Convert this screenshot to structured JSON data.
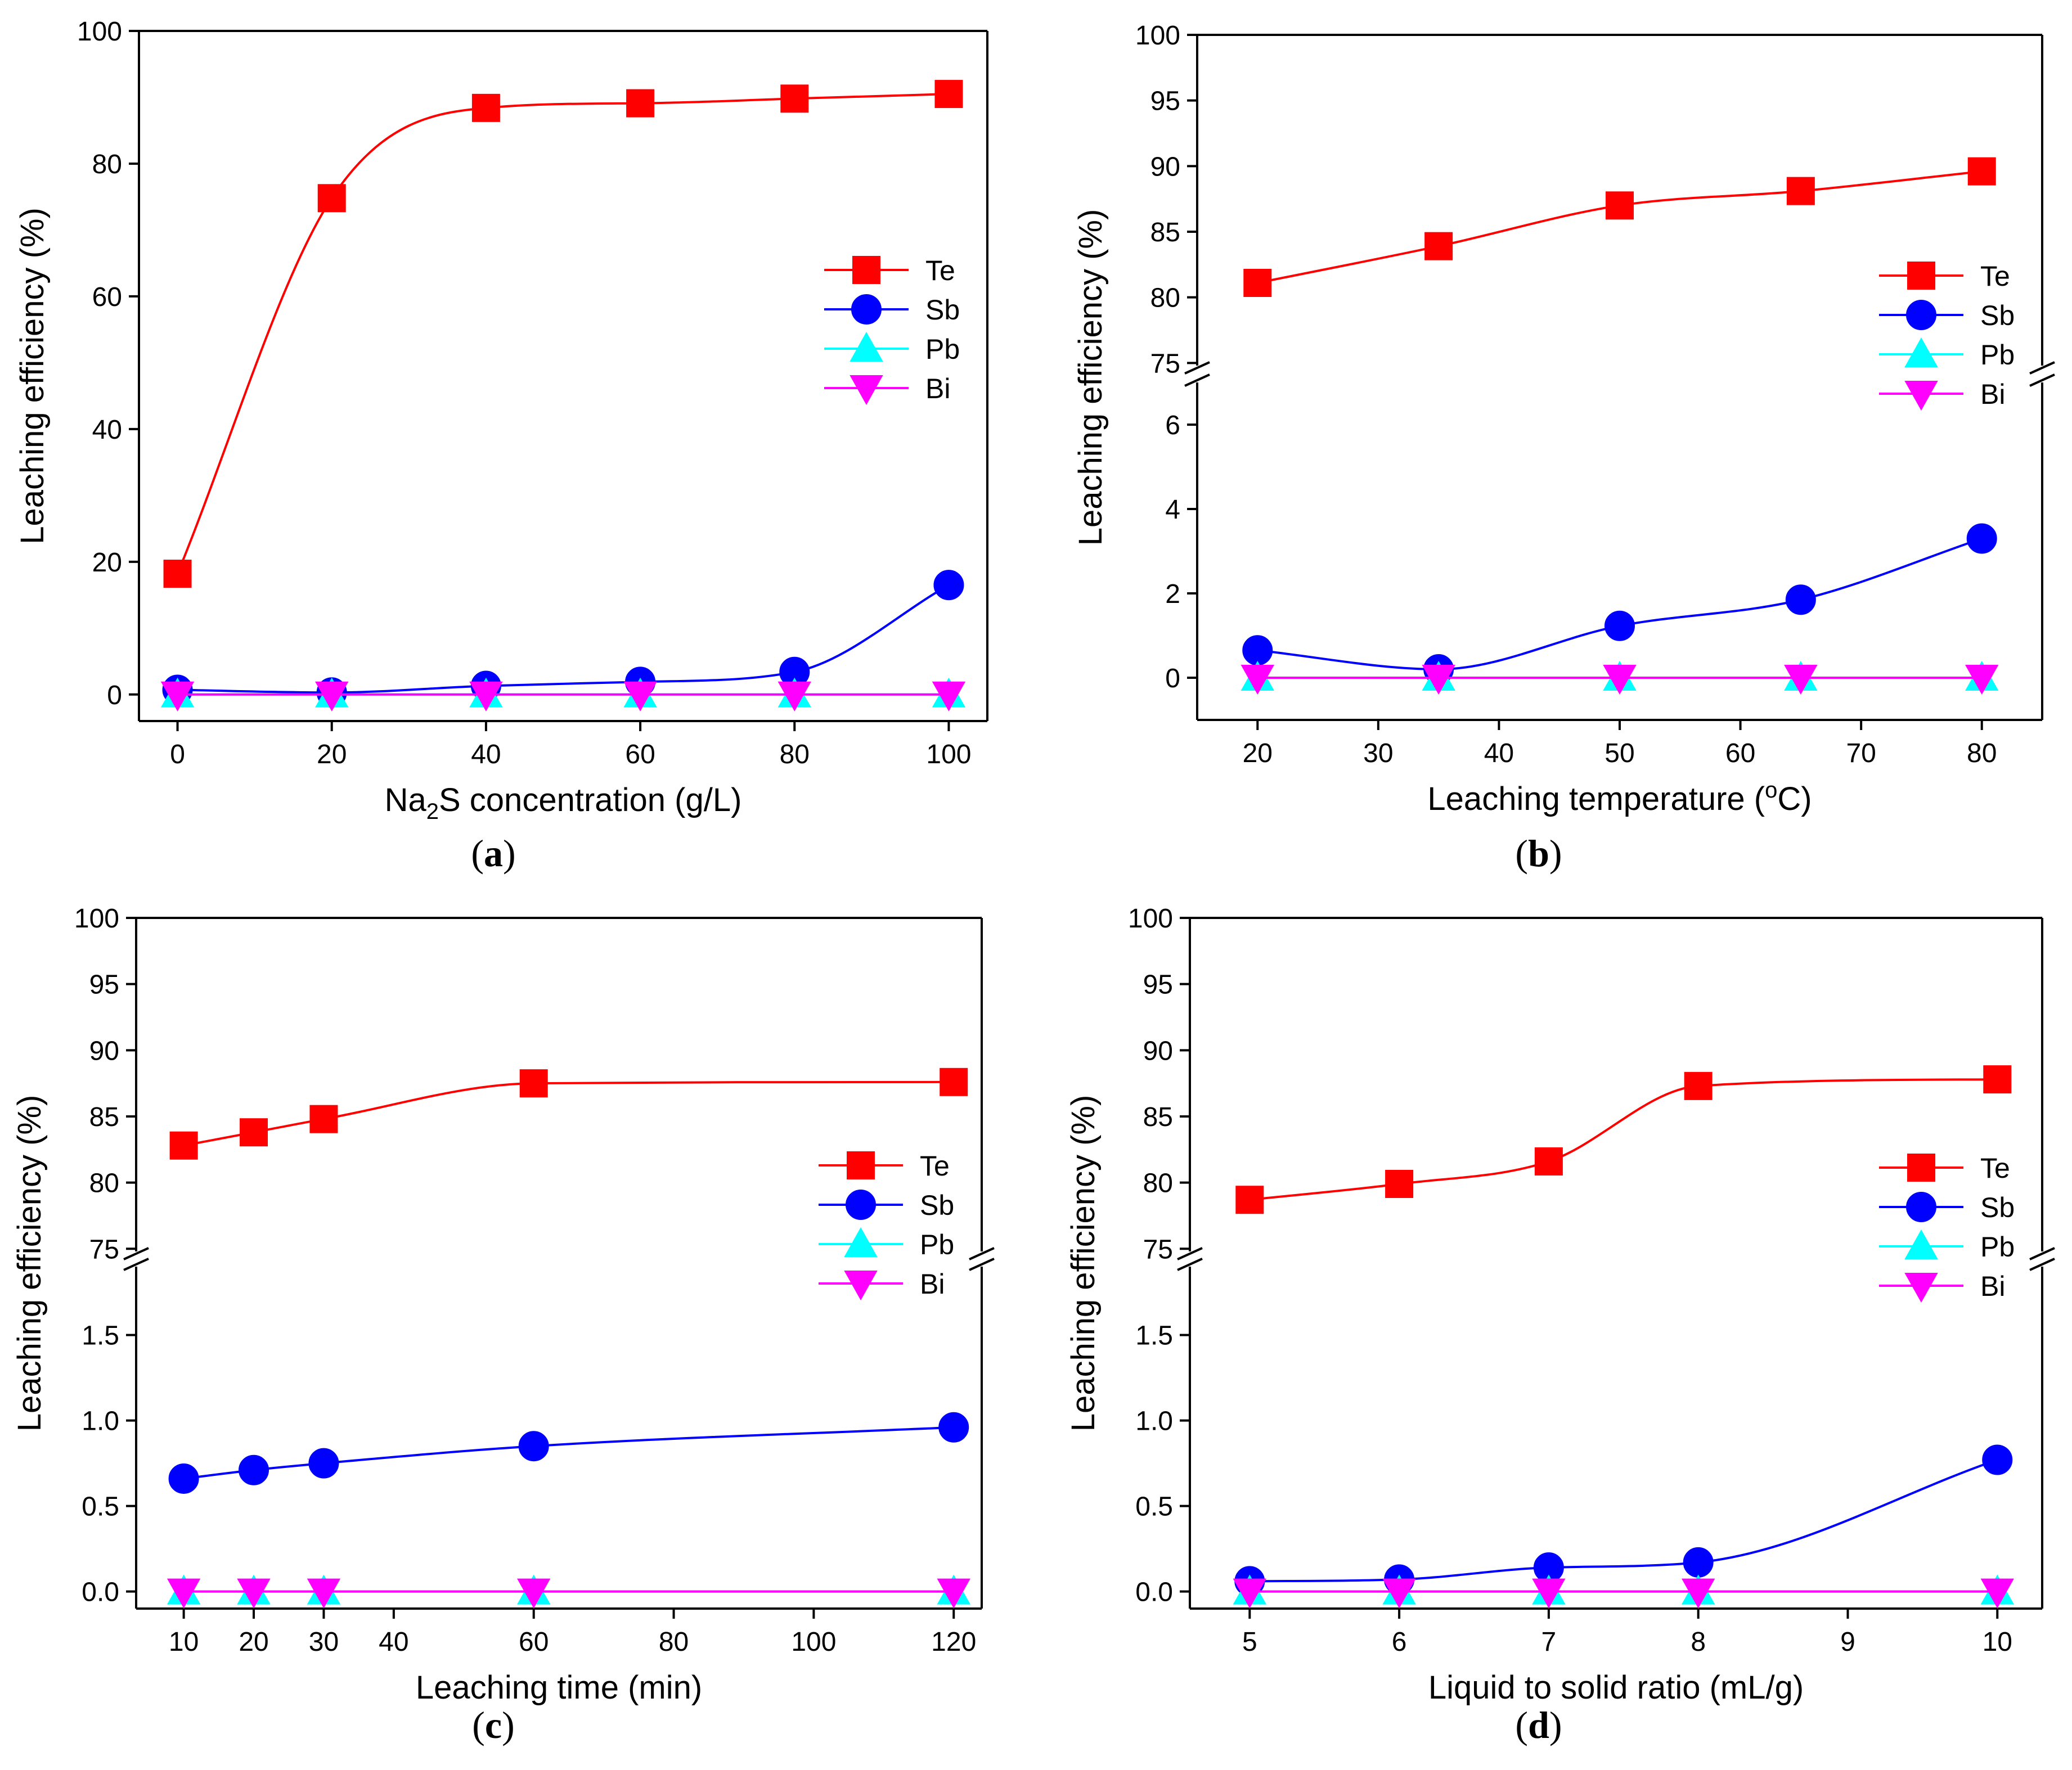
{
  "colors": {
    "Te": "#ff0000",
    "Sb": "#0000ff",
    "Pb": "#00ffff",
    "Bi": "#ff00ff"
  },
  "chart_data": [
    {
      "panel": "a",
      "type": "line",
      "xlabel": "Na2S concentration (g/L)",
      "xlabel_parts": [
        "Na",
        "2",
        "S concentration (g/L)"
      ],
      "ylabel": "Leaching efficiency (%)",
      "xlim": [
        -5,
        105
      ],
      "xticks": [
        0,
        20,
        40,
        60,
        80,
        100
      ],
      "broken_y": false,
      "ylim": [
        -4,
        100
      ],
      "yticks": [
        0,
        20,
        40,
        60,
        80,
        100
      ],
      "legend": "right",
      "x": [
        0,
        20,
        40,
        60,
        80,
        100
      ],
      "series": [
        {
          "name": "Te",
          "marker": "square",
          "values": [
            18.2,
            74.8,
            88.4,
            89.1,
            89.8,
            90.5
          ]
        },
        {
          "name": "Sb",
          "marker": "circle",
          "values": [
            0.7,
            0.3,
            1.3,
            1.9,
            3.4,
            16.5
          ]
        },
        {
          "name": "Pb",
          "marker": "triangle-up",
          "values": [
            0,
            0,
            0,
            0,
            0,
            0
          ]
        },
        {
          "name": "Bi",
          "marker": "triangle-down",
          "values": [
            0,
            0,
            0,
            0,
            0,
            0
          ]
        }
      ]
    },
    {
      "panel": "b",
      "type": "line",
      "xlabel": "Leaching temperature (oC)",
      "xlabel_parts": [
        "Leaching temperature (",
        "o",
        "C)"
      ],
      "ylabel": "Leaching efficiency (%)",
      "xlim": [
        15,
        85
      ],
      "xticks": [
        20,
        30,
        40,
        50,
        60,
        70,
        80
      ],
      "broken_y": true,
      "ylim_lower": [
        -1,
        7
      ],
      "yticks_lower": [
        0,
        2,
        4,
        6
      ],
      "ylim_upper": [
        74.8,
        100
      ],
      "yticks_upper": [
        75,
        80,
        85,
        90,
        95,
        100
      ],
      "legend": "right",
      "x": [
        20,
        35,
        50,
        65,
        80
      ],
      "series": [
        {
          "name": "Te",
          "marker": "square",
          "values": [
            81.1,
            83.9,
            87.0,
            88.1,
            89.6
          ]
        },
        {
          "name": "Sb",
          "marker": "circle",
          "values": [
            0.65,
            0.2,
            1.23,
            1.85,
            3.3
          ]
        },
        {
          "name": "Pb",
          "marker": "triangle-up",
          "values": [
            0,
            0,
            0,
            0,
            0
          ]
        },
        {
          "name": "Bi",
          "marker": "triangle-down",
          "values": [
            0,
            0,
            0,
            0,
            0
          ]
        }
      ]
    },
    {
      "panel": "c",
      "type": "line",
      "xlabel": "Leaching time (min)",
      "xlabel_parts": [
        "Leaching time (min)"
      ],
      "ylabel": "Leaching efficiency (%)",
      "xlim": [
        3.2,
        124
      ],
      "xticks": [
        10,
        20,
        30,
        40,
        60,
        80,
        100,
        120
      ],
      "broken_y": true,
      "ylim_lower": [
        -0.1,
        1.9
      ],
      "yticks_lower": [
        0.0,
        0.5,
        1.0,
        1.5
      ],
      "ylim_upper": [
        74.8,
        100
      ],
      "yticks_upper": [
        75,
        80,
        85,
        90,
        95,
        100
      ],
      "legend": "right",
      "x": [
        10,
        20,
        30,
        60,
        120
      ],
      "series": [
        {
          "name": "Te",
          "marker": "square",
          "values": [
            82.8,
            83.8,
            84.8,
            87.5,
            87.6
          ]
        },
        {
          "name": "Sb",
          "marker": "circle",
          "values": [
            0.66,
            0.71,
            0.75,
            0.85,
            0.96
          ]
        },
        {
          "name": "Pb",
          "marker": "triangle-up",
          "values": [
            0,
            0,
            0,
            0,
            0
          ]
        },
        {
          "name": "Bi",
          "marker": "triangle-down",
          "values": [
            0,
            0,
            0,
            0,
            0
          ]
        }
      ]
    },
    {
      "panel": "d",
      "type": "line",
      "xlabel": "Liquid to solid ratio (mL/g)",
      "xlabel_parts": [
        "Liquid to solid ratio (mL/g)"
      ],
      "ylabel": "Leaching efficiency (%)",
      "xlim": [
        4.6,
        10.3
      ],
      "xticks": [
        5,
        6,
        7,
        8,
        9,
        10
      ],
      "broken_y": true,
      "ylim_lower": [
        -0.1,
        1.9
      ],
      "yticks_lower": [
        0.0,
        0.5,
        1.0,
        1.5
      ],
      "ylim_upper": [
        74.8,
        100
      ],
      "yticks_upper": [
        75,
        80,
        85,
        90,
        95,
        100
      ],
      "legend": "right",
      "x": [
        5,
        6,
        7,
        8,
        10
      ],
      "series": [
        {
          "name": "Te",
          "marker": "square",
          "values": [
            78.7,
            79.9,
            81.6,
            87.3,
            87.8
          ]
        },
        {
          "name": "Sb",
          "marker": "circle",
          "values": [
            0.06,
            0.07,
            0.14,
            0.17,
            0.77
          ]
        },
        {
          "name": "Pb",
          "marker": "triangle-up",
          "values": [
            0,
            0,
            0,
            0,
            0
          ]
        },
        {
          "name": "Bi",
          "marker": "triangle-down",
          "values": [
            0,
            0,
            0,
            0,
            0
          ]
        }
      ]
    }
  ]
}
